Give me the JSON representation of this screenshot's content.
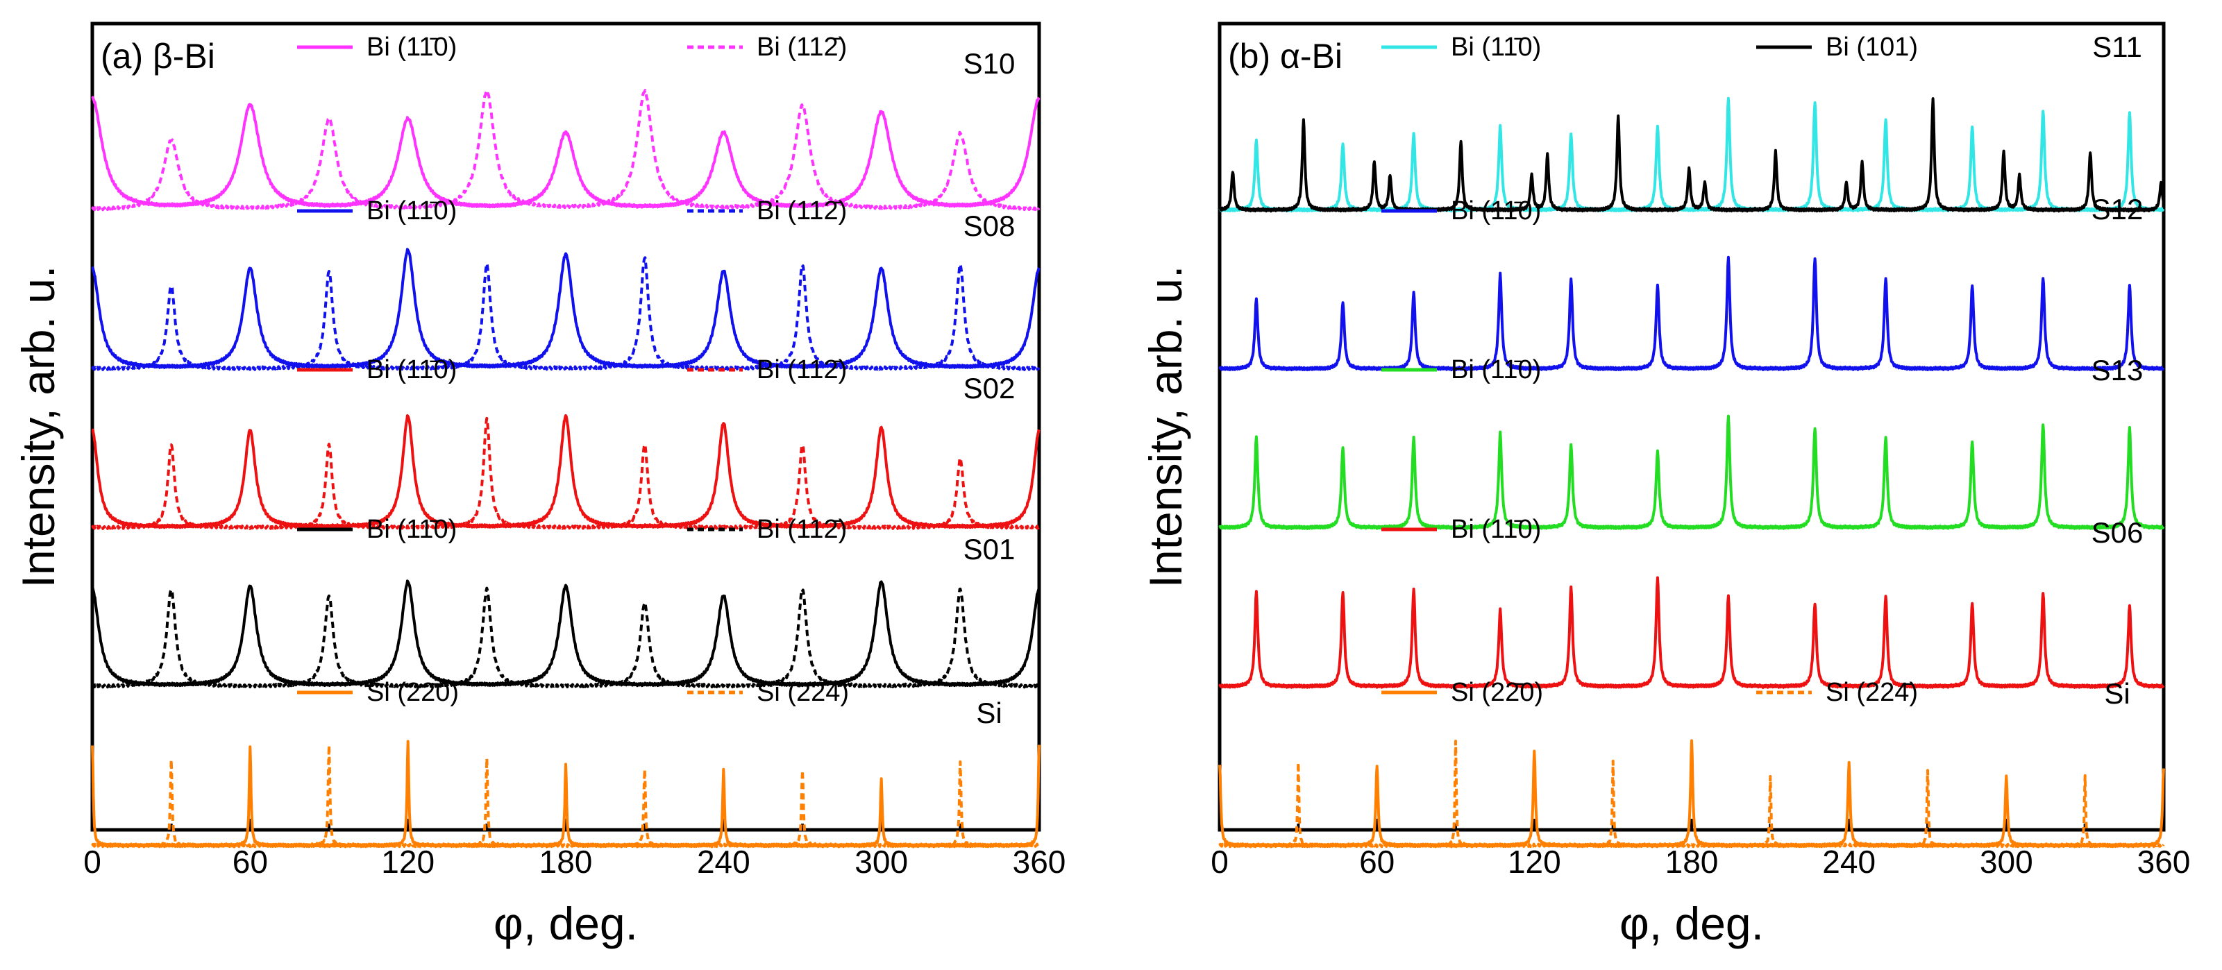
{
  "chart_data": [
    {
      "type": "line",
      "panel_label": "(a) β-Bi",
      "xlabel": "φ, deg.",
      "ylabel": "Intensity, arb. u.",
      "xlim": [
        0,
        360
      ],
      "xticks": [
        "0",
        "60",
        "120",
        "180",
        "240",
        "300",
        "360"
      ],
      "yticks_shown": false,
      "grid": false,
      "stacks": [
        {
          "sample": "S10",
          "color": "#ff33ff",
          "series": [
            {
              "name": "Bi (11̄0)",
              "style": "solid",
              "peaks_x": [
                0,
                60,
                120,
                180,
                240,
                300,
                360
              ],
              "peak_heights": [
                0.8,
                0.75,
                0.65,
                0.55,
                0.55,
                0.7,
                0.8
              ],
              "width": 4.5
            },
            {
              "name": "Bi (112̄)",
              "style": "dashed",
              "peaks_x": [
                30,
                90,
                150,
                210,
                270,
                330
              ],
              "peak_heights": [
                0.5,
                0.65,
                0.85,
                0.85,
                0.75,
                0.55
              ],
              "width": 3.5
            }
          ]
        },
        {
          "sample": "S08",
          "color": "#1111ee",
          "series": [
            {
              "name": "Bi (11̄0)",
              "style": "solid",
              "peaks_x": [
                0,
                60,
                120,
                180,
                240,
                300,
                360
              ],
              "peak_heights": [
                0.72,
                0.72,
                0.85,
                0.82,
                0.7,
                0.72,
                0.72
              ],
              "width": 3.2
            },
            {
              "name": "Bi (112̄)",
              "style": "dashed",
              "peaks_x": [
                30,
                90,
                150,
                210,
                270,
                330
              ],
              "peak_heights": [
                0.6,
                0.7,
                0.75,
                0.8,
                0.75,
                0.75
              ],
              "width": 1.8
            }
          ]
        },
        {
          "sample": "S02",
          "color": "#ee1111",
          "series": [
            {
              "name": "Bi (11̄0)",
              "style": "solid",
              "peaks_x": [
                0,
                60,
                120,
                180,
                240,
                300,
                360
              ],
              "peak_heights": [
                0.7,
                0.7,
                0.8,
                0.8,
                0.75,
                0.72,
                0.7
              ],
              "width": 2.5
            },
            {
              "name": "Bi (112̄)",
              "style": "dashed",
              "peaks_x": [
                30,
                90,
                150,
                210,
                270,
                330
              ],
              "peak_heights": [
                0.6,
                0.6,
                0.78,
                0.6,
                0.6,
                0.5
              ],
              "width": 1.5
            }
          ]
        },
        {
          "sample": "S01",
          "color": "#000000",
          "series": [
            {
              "name": "Bi (11̄0)",
              "style": "solid",
              "peaks_x": [
                0,
                60,
                120,
                180,
                240,
                300,
                360
              ],
              "peak_heights": [
                0.7,
                0.72,
                0.75,
                0.72,
                0.65,
                0.75,
                0.7
              ],
              "width": 3.0
            },
            {
              "name": "Bi (112̄)",
              "style": "dashed",
              "peaks_x": [
                30,
                90,
                150,
                210,
                270,
                330
              ],
              "peak_heights": [
                0.7,
                0.65,
                0.7,
                0.6,
                0.7,
                0.7
              ],
              "width": 2.0
            }
          ]
        },
        {
          "sample": "Si",
          "color": "#ff8000",
          "series": [
            {
              "name": "Si (22̄0)",
              "style": "solid",
              "peaks_x": [
                0,
                60,
                120,
                180,
                240,
                300,
                360
              ],
              "peak_heights": [
                0.72,
                0.72,
                0.75,
                0.58,
                0.55,
                0.48,
                0.72
              ],
              "width": 0.4
            },
            {
              "name": "Si (224̄)",
              "style": "dashed",
              "peaks_x": [
                30,
                90,
                150,
                210,
                270,
                330
              ],
              "peak_heights": [
                0.62,
                0.72,
                0.62,
                0.55,
                0.55,
                0.6
              ],
              "width": 0.4
            }
          ]
        }
      ]
    },
    {
      "type": "line",
      "panel_label": "(b) α-Bi",
      "xlabel": "φ, deg.",
      "ylabel": "Intensity, arb. u.",
      "xlim": [
        0,
        360
      ],
      "xticks": [
        "0",
        "60",
        "120",
        "180",
        "240",
        "300",
        "360"
      ],
      "yticks_shown": false,
      "grid": false,
      "stacks": [
        {
          "sample": "S11",
          "series": [
            {
              "name": "Bi (11̄0)",
              "color": "#33e6e6",
              "style": "solid",
              "peaks_x": [
                14,
                47,
                74,
                107,
                134,
                167,
                194,
                227,
                254,
                287,
                314,
                347
              ],
              "peak_heights": [
                0.5,
                0.48,
                0.55,
                0.6,
                0.55,
                0.6,
                0.8,
                0.78,
                0.65,
                0.6,
                0.72,
                0.7
              ],
              "width": 0.7
            },
            {
              "name": "Bi (101)",
              "color": "#000000",
              "style": "solid",
              "peaks_x": [
                5,
                32,
                59,
                65,
                92,
                119,
                125,
                152,
                179,
                185,
                212,
                239,
                245,
                272,
                299,
                305,
                332,
                359
              ],
              "peak_heights": [
                0.28,
                0.65,
                0.35,
                0.25,
                0.5,
                0.25,
                0.4,
                0.68,
                0.3,
                0.2,
                0.42,
                0.2,
                0.35,
                0.8,
                0.42,
                0.25,
                0.42,
                0.2
              ],
              "width": 0.6
            }
          ]
        },
        {
          "sample": "S12",
          "series": [
            {
              "name": "Bi (11̄0)",
              "color": "#1111ee",
              "style": "solid",
              "peaks_x": [
                14,
                47,
                74,
                107,
                134,
                167,
                194,
                227,
                254,
                287,
                314,
                347
              ],
              "peak_heights": [
                0.5,
                0.48,
                0.55,
                0.68,
                0.65,
                0.6,
                0.8,
                0.8,
                0.65,
                0.6,
                0.66,
                0.6
              ],
              "width": 0.7
            }
          ]
        },
        {
          "sample": "S13",
          "series": [
            {
              "name": "Bi (11̄0)",
              "color": "#22dd22",
              "style": "solid",
              "peaks_x": [
                14,
                47,
                74,
                107,
                134,
                167,
                194,
                227,
                254,
                287,
                314,
                347
              ],
              "peak_heights": [
                0.65,
                0.58,
                0.65,
                0.68,
                0.6,
                0.55,
                0.8,
                0.72,
                0.65,
                0.62,
                0.75,
                0.72
              ],
              "width": 0.7
            }
          ]
        },
        {
          "sample": "S06",
          "series": [
            {
              "name": "Bi (11̄0)",
              "color": "#ee1111",
              "style": "solid",
              "peaks_x": [
                14,
                47,
                74,
                107,
                134,
                167,
                194,
                227,
                254,
                287,
                314,
                347
              ],
              "peak_heights": [
                0.68,
                0.68,
                0.7,
                0.55,
                0.72,
                0.78,
                0.65,
                0.6,
                0.65,
                0.6,
                0.68,
                0.58
              ],
              "width": 0.7
            }
          ]
        },
        {
          "sample": "Si",
          "series": [
            {
              "name": "Si (22̄0)",
              "color": "#ff8000",
              "style": "solid",
              "peaks_x": [
                0,
                60,
                120,
                180,
                240,
                300,
                360
              ],
              "peak_heights": [
                0.58,
                0.58,
                0.68,
                0.75,
                0.6,
                0.5,
                0.55
              ],
              "width": 0.5
            },
            {
              "name": "Si (224̄)",
              "color": "#ff8000",
              "style": "dashed",
              "peaks_x": [
                30,
                90,
                150,
                210,
                270,
                330
              ],
              "peak_heights": [
                0.6,
                0.75,
                0.6,
                0.5,
                0.55,
                0.5
              ],
              "width": 0.3
            }
          ]
        }
      ]
    }
  ]
}
